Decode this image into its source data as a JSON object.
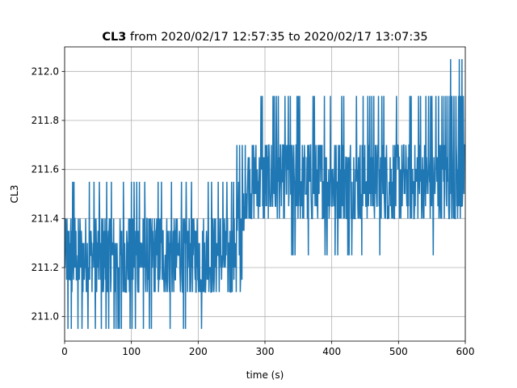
{
  "chart_data": {
    "type": "line",
    "title": {
      "variable": "CL3",
      "rest": "from 2020/02/17 12:57:35 to 2020/02/17 13:07:35"
    },
    "xlabel": "time (s)",
    "ylabel": "CL3",
    "xlim": [
      0,
      600
    ],
    "ylim": [
      210.9,
      212.1
    ],
    "x_ticks": [
      0,
      100,
      200,
      300,
      400,
      500,
      600
    ],
    "x_tick_labels": [
      "0",
      "100",
      "200",
      "300",
      "400",
      "500",
      "600"
    ],
    "y_ticks": [
      211.0,
      211.2,
      211.4,
      211.6,
      211.8,
      212.0
    ],
    "y_tick_labels": [
      "211.0",
      "211.2",
      "211.4",
      "211.6",
      "211.8",
      "212.0"
    ],
    "grid": true,
    "series": [
      {
        "color": "#1f77b4",
        "sampling_interval_s": 0.5,
        "segments": [
          {
            "x_range": [
              0,
              255
            ],
            "typical_low": 211.1,
            "typical_high": 211.4,
            "spikes_up": [
              211.55
            ],
            "spikes_down": [
              210.95
            ],
            "spike_up_x": [
              12,
              14,
              37,
              44,
              52,
              63,
              70,
              88,
              100,
              104,
              108,
              112,
              120,
              140,
              145,
              160,
              175,
              182,
              190,
              215,
              220,
              230,
              237,
              243,
              250,
              253
            ],
            "spike_down_x": [
              5,
              10,
              20,
              26,
              35,
              46,
              55,
              62,
              66,
              70,
              74,
              77,
              80,
              82,
              85,
              98,
              101,
              106,
              118,
              127,
              130,
              158,
              178,
              181,
              205
            ]
          },
          {
            "x_range": [
              255,
              270
            ],
            "typical_low": 211.15,
            "typical_high": 211.55,
            "spikes_up": [
              211.7
            ],
            "spikes_down": [
              211.1
            ],
            "spike_up_x": [
              258,
              262,
              266
            ],
            "spike_down_x": [
              257,
              263
            ]
          },
          {
            "x_range": [
              270,
              600
            ],
            "typical_low": 211.4,
            "typical_high": 211.7,
            "spikes_up": [
              211.9,
              212.05
            ],
            "spikes_down": [
              211.25
            ],
            "spike_up_x": [
              268,
              294,
              296,
              312,
              314,
              317,
              320,
              330,
              335,
              338,
              348,
              350,
              352,
              372,
              374,
              389,
              398,
              415,
              418,
              437,
              447,
              454,
              457,
              460,
              463,
              470,
              475,
              478,
              497,
              517,
              519,
              530,
              533,
              541,
              545,
              548,
              550,
              556,
              560,
              565,
              568,
              571,
              574,
              577,
              580,
              583,
              586,
              590,
              593,
              597
            ],
            "spike_top_x": [
              578,
              591,
              595
            ],
            "spike_down_x": [
              340,
              342,
              345,
              365,
              390,
              393,
              405,
              409,
              418,
              424,
              426,
              430,
              445,
              472,
              552
            ]
          }
        ]
      }
    ]
  }
}
